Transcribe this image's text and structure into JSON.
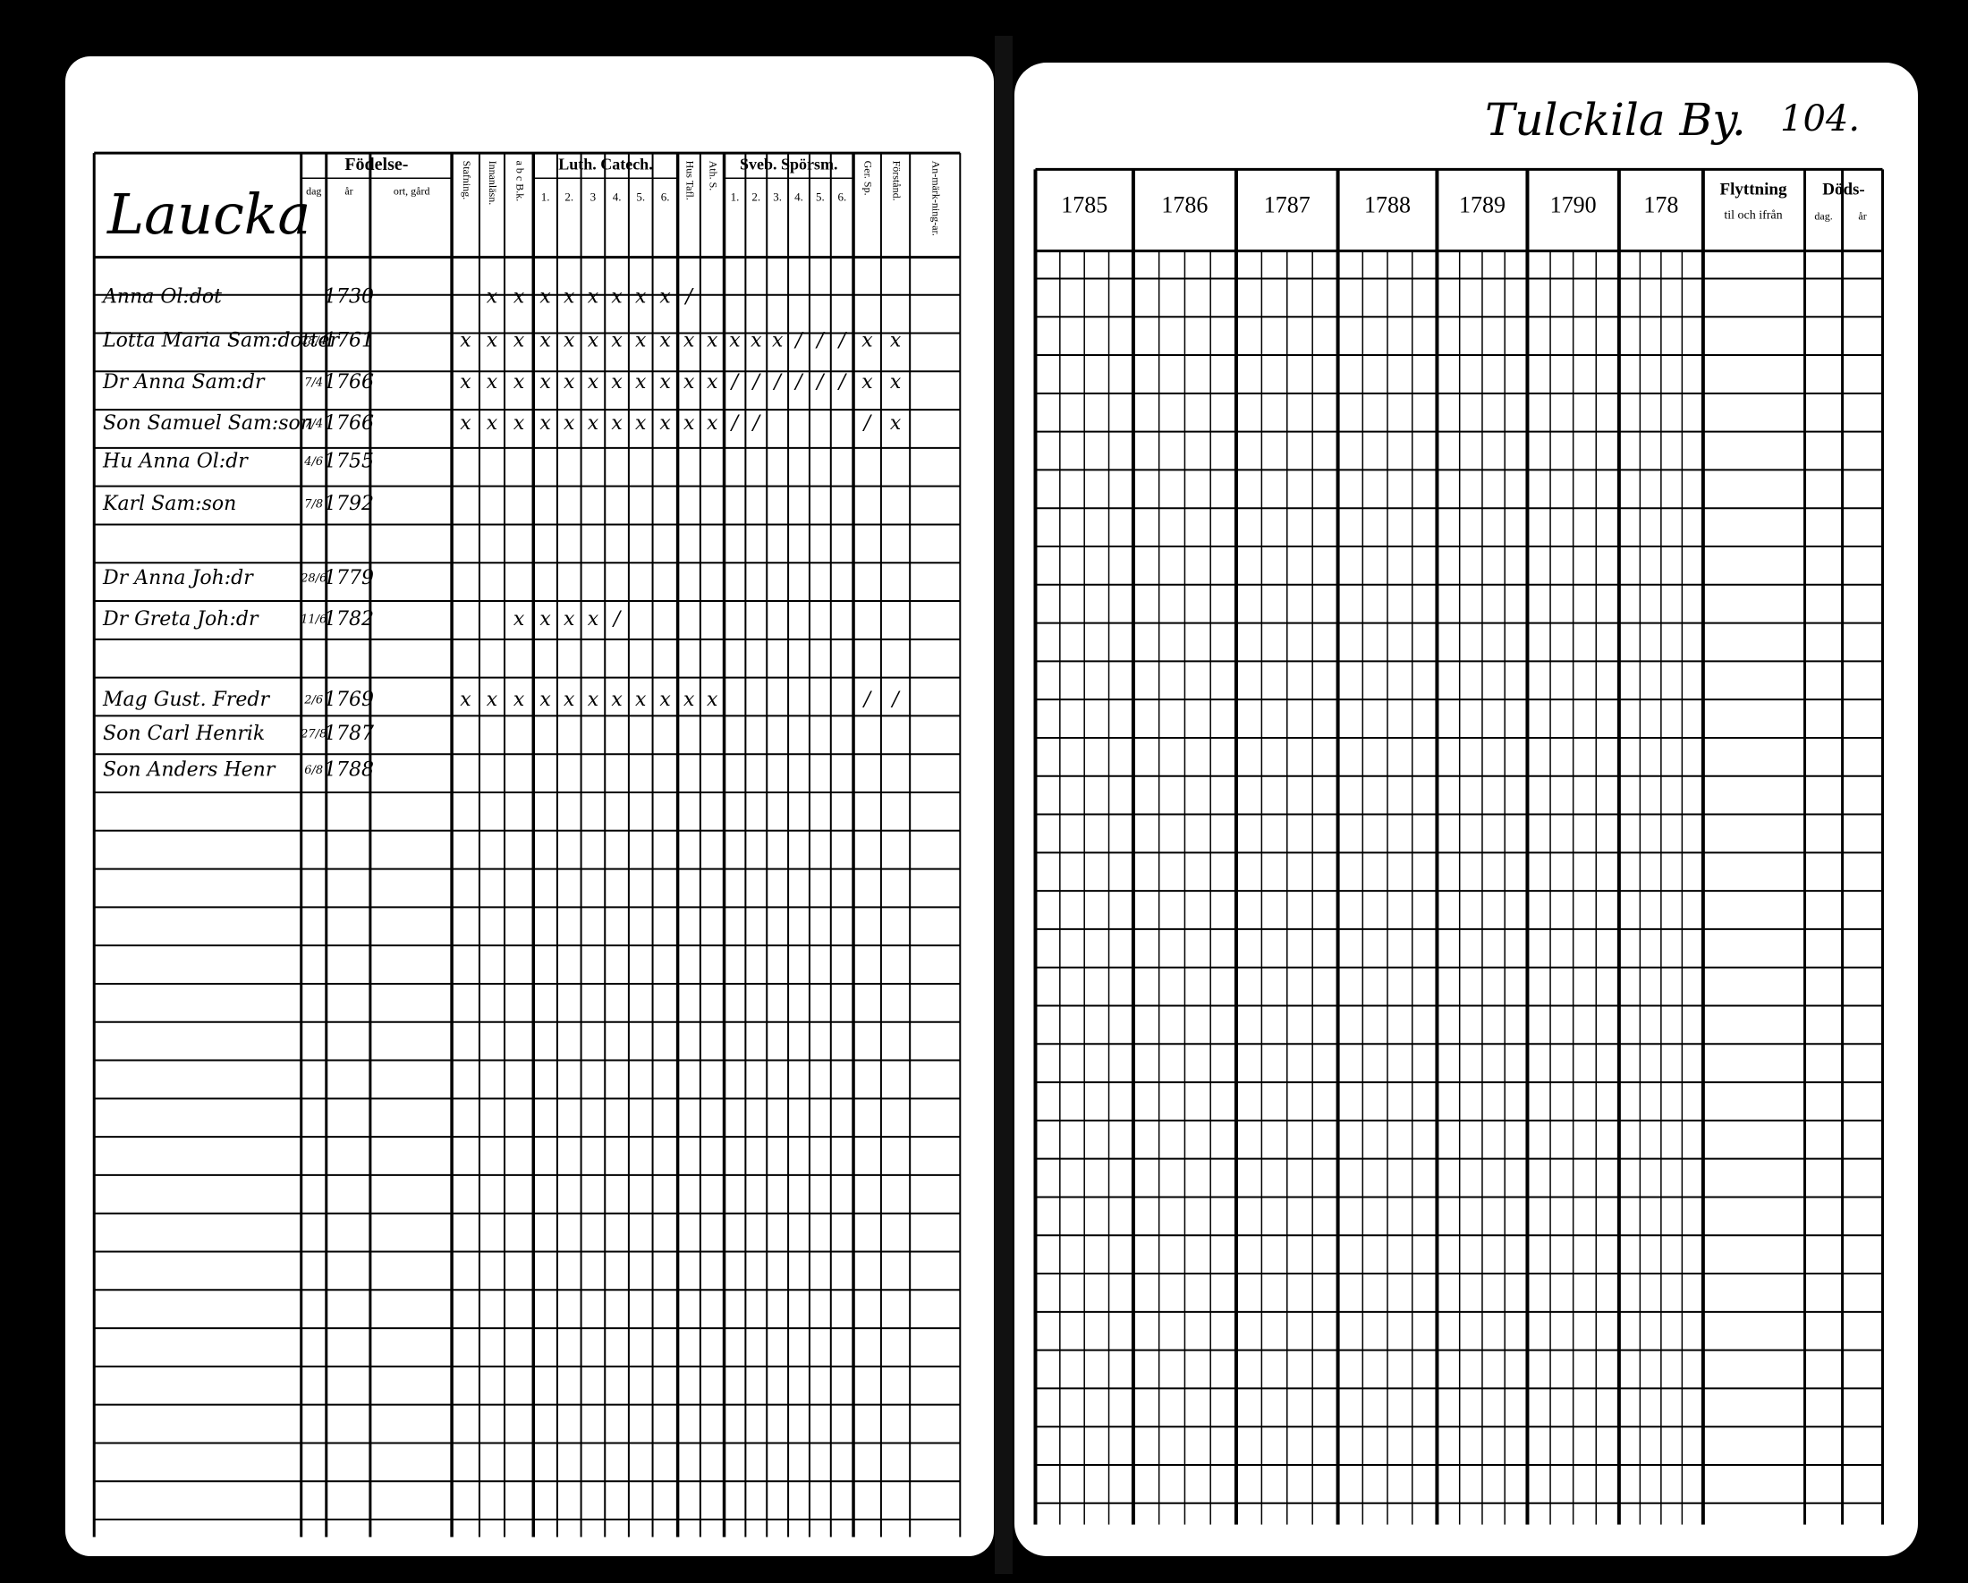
{
  "left_page": {
    "place": "Laucka",
    "headers": {
      "birth": "Födelse-",
      "day": "dag",
      "year": "år",
      "birthplace": "ort, gård",
      "groups": [
        "Luth. Catech.",
        "Sveb. Spörsm."
      ],
      "columns": [
        "Stafning.",
        "Innanläsn.",
        "a b c B.k.",
        "1.",
        "2.",
        "3",
        "4.",
        "5.",
        "6.",
        "Hus Tafl.",
        "Ath. S.",
        "1.",
        "2.",
        "3.",
        "4.",
        "5.",
        "6.",
        "Ger. Sp.",
        "Förstånd.",
        "An-märk-ning-ar."
      ]
    },
    "rows": [
      {
        "name": "Anna Ol:dot",
        "day": null,
        "year": "1730",
        "marks": [
          null,
          "x",
          "x",
          "x",
          "x",
          "x",
          "x",
          "x",
          "x",
          "/",
          null,
          null,
          null,
          null,
          null,
          null,
          null,
          null,
          null,
          null
        ]
      },
      {
        "name": "Lotta Maria Sam:dotter",
        "day": "28/4",
        "year": "1761",
        "marks": [
          "x",
          "x",
          "x",
          "x",
          "x",
          "x",
          "x",
          "x",
          "x",
          "x",
          "x",
          "x",
          "x",
          "x",
          "/",
          "/",
          "/",
          "x",
          "x",
          null
        ]
      },
      {
        "name": "Dr Anna Sam:dr",
        "day": "7/4",
        "year": "1766",
        "marks": [
          "x",
          "x",
          "x",
          "x",
          "x",
          "x",
          "x",
          "x",
          "x",
          "x",
          "x",
          "/",
          "/",
          "/",
          "/",
          "/",
          "/",
          "x",
          "x",
          null
        ]
      },
      {
        "name": "Son Samuel Sam:son",
        "day": "7/4",
        "year": "1766",
        "marks": [
          "x",
          "x",
          "x",
          "x",
          "x",
          "x",
          "x",
          "x",
          "x",
          "x",
          "x",
          "/",
          "/",
          null,
          null,
          null,
          null,
          "/",
          "x",
          null
        ]
      },
      {
        "name": "Hu Anna Ol:dr",
        "day": "4/6",
        "year": "1755",
        "marks": [
          null,
          null,
          null,
          null,
          null,
          null,
          null,
          null,
          null,
          null,
          null,
          null,
          null,
          null,
          null,
          null,
          null,
          null,
          null,
          null
        ]
      },
      {
        "name": "Karl Sam:son",
        "day": "7/8",
        "year": "1792",
        "marks": [
          null,
          null,
          null,
          null,
          null,
          null,
          null,
          null,
          null,
          null,
          null,
          null,
          null,
          null,
          null,
          null,
          null,
          null,
          null,
          null
        ]
      },
      {
        "name": "Dr Anna Joh:dr",
        "day": "28/6",
        "year": "1779",
        "marks": [
          null,
          null,
          null,
          null,
          null,
          null,
          null,
          null,
          null,
          null,
          null,
          null,
          null,
          null,
          null,
          null,
          null,
          null,
          null,
          null
        ]
      },
      {
        "name": "Dr Greta Joh:dr",
        "day": "11/6",
        "year": "1782",
        "marks": [
          null,
          null,
          "x",
          "x",
          "x",
          "x",
          "/",
          null,
          null,
          null,
          null,
          null,
          null,
          null,
          null,
          null,
          null,
          null,
          null,
          null
        ]
      },
      {
        "name": "Mag Gust. Fredr",
        "day": "2/6",
        "year": "1769",
        "marks": [
          "x",
          "x",
          "x",
          "x",
          "x",
          "x",
          "x",
          "x",
          "x",
          "x",
          "x",
          null,
          null,
          null,
          null,
          null,
          null,
          "/",
          "/",
          null
        ]
      },
      {
        "name": "Son Carl Henrik",
        "day": "27/8",
        "year": "1787",
        "marks": [
          null,
          null,
          null,
          null,
          null,
          null,
          null,
          null,
          null,
          null,
          null,
          null,
          null,
          null,
          null,
          null,
          null,
          null,
          null,
          null
        ]
      },
      {
        "name": "Son Anders Henr",
        "day": "6/8",
        "year": "1788",
        "marks": [
          null,
          null,
          null,
          null,
          null,
          null,
          null,
          null,
          null,
          null,
          null,
          null,
          null,
          null,
          null,
          null,
          null,
          null,
          null,
          null
        ]
      }
    ]
  },
  "right_page": {
    "title": "Tulckila By.",
    "page": "104.",
    "years": [
      "1785",
      "1786",
      "1787",
      "1788",
      "1789",
      "1790",
      "178"
    ],
    "moving": "Flyttning",
    "moving_sub": "til och ifrån",
    "death": "Döds-",
    "death_day": "dag.",
    "death_year": "år"
  }
}
